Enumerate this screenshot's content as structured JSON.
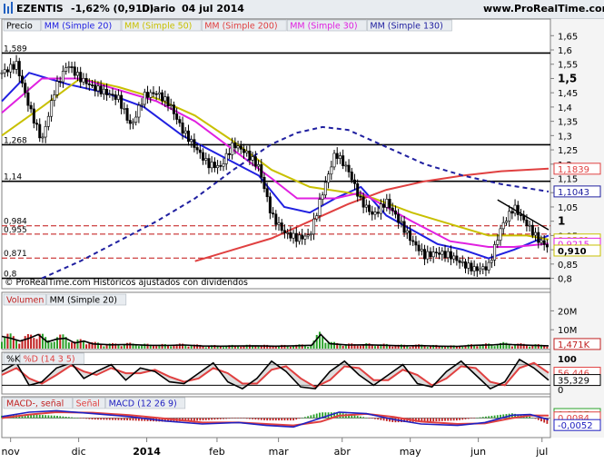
{
  "header": {
    "symbol": "EZENTIS",
    "change": "-1,62% (0,910)",
    "period": "Diario",
    "date": "04 jul 2014",
    "site": "www.ProRealTime.com",
    "icon": "chart-line-icon"
  },
  "price_panel": {
    "legend": [
      {
        "label": "Precio",
        "color": "#000000"
      },
      {
        "label": "MM (Simple 20)",
        "color": "#2020e0"
      },
      {
        "label": "MM (Simple 50)",
        "color": "#c8c000"
      },
      {
        "label": "MM (Simple 200)",
        "color": "#e04040"
      },
      {
        "label": "MM (Simple 30)",
        "color": "#e020e0"
      },
      {
        "label": "MM (Simple 130)",
        "color": "#2020a0"
      }
    ],
    "level_labels": [
      "1,589",
      "1,268",
      "1,14",
      "0,984",
      "0,955",
      "0,871",
      "0,8"
    ],
    "right_badges": [
      {
        "value": "1,1839",
        "color": "#e04040"
      },
      {
        "value": "1,1043",
        "color": "#2020a0"
      },
      {
        "value": "0,9361",
        "color": "#c8c000"
      },
      {
        "value": "0,9215",
        "color": "#e020e0"
      },
      {
        "value": "0,910",
        "color": "#c8c000"
      }
    ],
    "footer_text": "© ProRealTime.com  Históricos ajustados con dividendos"
  },
  "volume_panel": {
    "legend": [
      "Volumen",
      "MM (Simple 20)"
    ],
    "axis_labels": [
      "20M",
      "10M"
    ],
    "badge": "1,471K"
  },
  "stoch_panel": {
    "legend": [
      "%K",
      "%D (14 3 5)"
    ],
    "axis_labels": [
      "100",
      "0"
    ],
    "badges": [
      "56,446",
      "35,329"
    ]
  },
  "macd_panel": {
    "legend": [
      "MACD-, señal",
      "Señal",
      "MACD (12 26 9)"
    ],
    "badges": [
      "0,0137",
      "0,0084",
      "-0,0052"
    ]
  },
  "chart_data": {
    "type": "line",
    "title": "EZENTIS Diario 04 jul 2014",
    "x_tick_labels": [
      "nov",
      "dic",
      "2014",
      "feb",
      "mar",
      "abr",
      "may",
      "jun",
      "jul"
    ],
    "x_ticks": [
      "2013-11-01",
      "2013-12-02",
      "2014-01-02",
      "2014-02-03",
      "2014-03-03",
      "2014-04-01",
      "2014-05-02",
      "2014-06-02",
      "2014-07-01"
    ],
    "x_range": [
      "2013-10-28",
      "2014-07-04"
    ],
    "y_tick_labels": [
      "1,65",
      "1,6",
      "1,55",
      "1,5",
      "1,45",
      "1,4",
      "1,35",
      "1,3",
      "1,25",
      "1,2",
      "1,15",
      "1,1",
      "1,05",
      "1",
      "0,95",
      "0,9",
      "0,85",
      "0,8"
    ],
    "ylim": [
      0.77,
      1.67
    ],
    "horizontal_levels": [
      1.589,
      1.268,
      1.14,
      0.984,
      0.955,
      0.871,
      0.8
    ],
    "price_close": [
      [
        0,
        1.52
      ],
      [
        8,
        1.55
      ],
      [
        15,
        1.4
      ],
      [
        22,
        1.28
      ],
      [
        29,
        1.46
      ],
      [
        36,
        1.55
      ],
      [
        43,
        1.5
      ],
      [
        50,
        1.47
      ],
      [
        57,
        1.45
      ],
      [
        64,
        1.43
      ],
      [
        71,
        1.33
      ],
      [
        78,
        1.44
      ],
      [
        85,
        1.45
      ],
      [
        92,
        1.41
      ],
      [
        99,
        1.32
      ],
      [
        106,
        1.26
      ],
      [
        113,
        1.2
      ],
      [
        120,
        1.19
      ],
      [
        127,
        1.27
      ],
      [
        134,
        1.24
      ],
      [
        141,
        1.19
      ],
      [
        148,
        1.02
      ],
      [
        155,
        0.96
      ],
      [
        162,
        0.94
      ],
      [
        169,
        0.95
      ],
      [
        176,
        1.1
      ],
      [
        183,
        1.24
      ],
      [
        190,
        1.18
      ],
      [
        197,
        1.07
      ],
      [
        204,
        1.02
      ],
      [
        211,
        1.07
      ],
      [
        218,
        1.0
      ],
      [
        225,
        0.93
      ],
      [
        232,
        0.88
      ],
      [
        239,
        0.89
      ],
      [
        246,
        0.88
      ],
      [
        253,
        0.85
      ],
      [
        260,
        0.83
      ],
      [
        267,
        0.84
      ],
      [
        274,
        0.98
      ],
      [
        281,
        1.05
      ],
      [
        288,
        0.99
      ],
      [
        295,
        0.93
      ],
      [
        300,
        0.91
      ]
    ],
    "series": [
      {
        "name": "MM (Simple 20)",
        "color": "#2020e0",
        "points": [
          [
            0,
            1.42
          ],
          [
            15,
            1.52
          ],
          [
            36,
            1.48
          ],
          [
            57,
            1.45
          ],
          [
            78,
            1.4
          ],
          [
            99,
            1.3
          ],
          [
            120,
            1.23
          ],
          [
            141,
            1.16
          ],
          [
            155,
            1.05
          ],
          [
            169,
            1.03
          ],
          [
            183,
            1.08
          ],
          [
            197,
            1.12
          ],
          [
            211,
            1.02
          ],
          [
            225,
            0.97
          ],
          [
            239,
            0.92
          ],
          [
            253,
            0.9
          ],
          [
            267,
            0.87
          ],
          [
            281,
            0.9
          ],
          [
            300,
            0.95
          ]
        ]
      },
      {
        "name": "MM (Simple 50)",
        "color": "#c8c000",
        "points": [
          [
            0,
            1.3
          ],
          [
            22,
            1.4
          ],
          [
            43,
            1.5
          ],
          [
            64,
            1.47
          ],
          [
            85,
            1.43
          ],
          [
            106,
            1.37
          ],
          [
            127,
            1.28
          ],
          [
            148,
            1.18
          ],
          [
            169,
            1.12
          ],
          [
            190,
            1.1
          ],
          [
            204,
            1.08
          ],
          [
            225,
            1.03
          ],
          [
            246,
            0.99
          ],
          [
            267,
            0.95
          ],
          [
            288,
            0.95
          ],
          [
            300,
            0.936
          ]
        ]
      },
      {
        "name": "MM (Simple 200)",
        "color": "#e04040",
        "points": [
          [
            106,
            0.86
          ],
          [
            127,
            0.9
          ],
          [
            148,
            0.94
          ],
          [
            169,
            1.0
          ],
          [
            190,
            1.06
          ],
          [
            211,
            1.11
          ],
          [
            232,
            1.14
          ],
          [
            253,
            1.16
          ],
          [
            274,
            1.175
          ],
          [
            300,
            1.184
          ]
        ]
      },
      {
        "name": "MM (Simple 30)",
        "color": "#e020e0",
        "points": [
          [
            0,
            1.38
          ],
          [
            22,
            1.5
          ],
          [
            43,
            1.5
          ],
          [
            64,
            1.46
          ],
          [
            85,
            1.42
          ],
          [
            106,
            1.35
          ],
          [
            127,
            1.25
          ],
          [
            148,
            1.15
          ],
          [
            162,
            1.08
          ],
          [
            183,
            1.08
          ],
          [
            197,
            1.1
          ],
          [
            211,
            1.05
          ],
          [
            225,
            1.0
          ],
          [
            246,
            0.93
          ],
          [
            267,
            0.91
          ],
          [
            281,
            0.91
          ],
          [
            300,
            0.9215
          ]
        ]
      },
      {
        "name": "MM (Simple 130)",
        "color": "#2020a0",
        "points": [
          [
            22,
            0.8
          ],
          [
            43,
            0.86
          ],
          [
            64,
            0.93
          ],
          [
            85,
            1.0
          ],
          [
            106,
            1.08
          ],
          [
            127,
            1.18
          ],
          [
            148,
            1.27
          ],
          [
            162,
            1.31
          ],
          [
            176,
            1.33
          ],
          [
            190,
            1.32
          ],
          [
            211,
            1.26
          ],
          [
            232,
            1.2
          ],
          [
            253,
            1.16
          ],
          [
            274,
            1.13
          ],
          [
            300,
            1.104
          ]
        ]
      }
    ],
    "volume_ylim": [
      0,
      25
    ],
    "volume_approx_millions": [
      [
        0,
        6.5
      ],
      [
        5,
        5.5
      ],
      [
        10,
        4.0
      ],
      [
        15,
        5.5
      ],
      [
        20,
        7.5
      ],
      [
        25,
        3.5
      ],
      [
        30,
        5.0
      ],
      [
        35,
        5.5
      ],
      [
        40,
        3.0
      ],
      [
        45,
        4.0
      ],
      [
        50,
        2.5
      ],
      [
        60,
        2.0
      ],
      [
        70,
        2.2
      ],
      [
        80,
        1.8
      ],
      [
        90,
        1.7
      ],
      [
        100,
        1.9
      ],
      [
        110,
        1.4
      ],
      [
        120,
        1.3
      ],
      [
        130,
        1.4
      ],
      [
        140,
        1.5
      ],
      [
        150,
        1.3
      ],
      [
        160,
        1.5
      ],
      [
        170,
        1.8
      ],
      [
        175,
        7.5
      ],
      [
        180,
        2.6
      ],
      [
        190,
        1.9
      ],
      [
        200,
        2.0
      ],
      [
        210,
        1.8
      ],
      [
        220,
        1.5
      ],
      [
        230,
        1.6
      ],
      [
        240,
        1.3
      ],
      [
        250,
        1.2
      ],
      [
        260,
        1.8
      ],
      [
        270,
        2.0
      ],
      [
        275,
        2.4
      ],
      [
        280,
        2.1
      ],
      [
        290,
        1.8
      ],
      [
        300,
        1.47
      ]
    ],
    "stoch_ylim": [
      0,
      100
    ],
    "stoch_k": [
      [
        0,
        60
      ],
      [
        8,
        85
      ],
      [
        15,
        20
      ],
      [
        22,
        30
      ],
      [
        30,
        70
      ],
      [
        38,
        85
      ],
      [
        45,
        40
      ],
      [
        52,
        60
      ],
      [
        60,
        80
      ],
      [
        68,
        35
      ],
      [
        76,
        70
      ],
      [
        84,
        60
      ],
      [
        92,
        30
      ],
      [
        100,
        25
      ],
      [
        108,
        55
      ],
      [
        116,
        85
      ],
      [
        124,
        30
      ],
      [
        132,
        10
      ],
      [
        140,
        40
      ],
      [
        148,
        90
      ],
      [
        156,
        60
      ],
      [
        164,
        15
      ],
      [
        172,
        10
      ],
      [
        180,
        60
      ],
      [
        188,
        90
      ],
      [
        196,
        50
      ],
      [
        204,
        20
      ],
      [
        212,
        50
      ],
      [
        220,
        80
      ],
      [
        228,
        25
      ],
      [
        236,
        15
      ],
      [
        244,
        60
      ],
      [
        252,
        90
      ],
      [
        260,
        50
      ],
      [
        268,
        10
      ],
      [
        276,
        30
      ],
      [
        284,
        95
      ],
      [
        292,
        70
      ],
      [
        300,
        35
      ]
    ],
    "stoch_d": [
      [
        0,
        50
      ],
      [
        8,
        70
      ],
      [
        15,
        40
      ],
      [
        22,
        25
      ],
      [
        30,
        50
      ],
      [
        38,
        78
      ],
      [
        45,
        60
      ],
      [
        52,
        50
      ],
      [
        60,
        70
      ],
      [
        68,
        55
      ],
      [
        76,
        55
      ],
      [
        84,
        65
      ],
      [
        92,
        45
      ],
      [
        100,
        30
      ],
      [
        108,
        40
      ],
      [
        116,
        70
      ],
      [
        124,
        55
      ],
      [
        132,
        25
      ],
      [
        140,
        25
      ],
      [
        148,
        65
      ],
      [
        156,
        75
      ],
      [
        164,
        40
      ],
      [
        172,
        15
      ],
      [
        180,
        35
      ],
      [
        188,
        75
      ],
      [
        196,
        70
      ],
      [
        204,
        35
      ],
      [
        212,
        35
      ],
      [
        220,
        65
      ],
      [
        228,
        50
      ],
      [
        236,
        20
      ],
      [
        244,
        40
      ],
      [
        252,
        75
      ],
      [
        260,
        70
      ],
      [
        268,
        30
      ],
      [
        276,
        20
      ],
      [
        284,
        70
      ],
      [
        292,
        85
      ],
      [
        300,
        56
      ]
    ],
    "macd_ylim": [
      -0.06,
      0.06
    ],
    "macd_line": [
      [
        0,
        0.005
      ],
      [
        15,
        0.02
      ],
      [
        30,
        0.025
      ],
      [
        50,
        0.015
      ],
      [
        70,
        0.005
      ],
      [
        90,
        -0.01
      ],
      [
        110,
        -0.02
      ],
      [
        130,
        -0.015
      ],
      [
        145,
        -0.025
      ],
      [
        160,
        -0.03
      ],
      [
        175,
        0.0
      ],
      [
        185,
        0.02
      ],
      [
        200,
        0.015
      ],
      [
        215,
        -0.005
      ],
      [
        230,
        -0.02
      ],
      [
        250,
        -0.025
      ],
      [
        265,
        -0.015
      ],
      [
        280,
        0.01
      ],
      [
        290,
        0.012
      ],
      [
        300,
        -0.0052
      ]
    ],
    "macd_signal": [
      [
        0,
        0.0
      ],
      [
        15,
        0.012
      ],
      [
        30,
        0.02
      ],
      [
        50,
        0.018
      ],
      [
        70,
        0.01
      ],
      [
        90,
        -0.002
      ],
      [
        110,
        -0.015
      ],
      [
        130,
        -0.015
      ],
      [
        145,
        -0.02
      ],
      [
        160,
        -0.025
      ],
      [
        175,
        -0.012
      ],
      [
        185,
        0.008
      ],
      [
        200,
        0.014
      ],
      [
        215,
        0.004
      ],
      [
        230,
        -0.012
      ],
      [
        250,
        -0.02
      ],
      [
        265,
        -0.018
      ],
      [
        280,
        0.0
      ],
      [
        290,
        0.009
      ],
      [
        300,
        0.0084
      ]
    ]
  }
}
